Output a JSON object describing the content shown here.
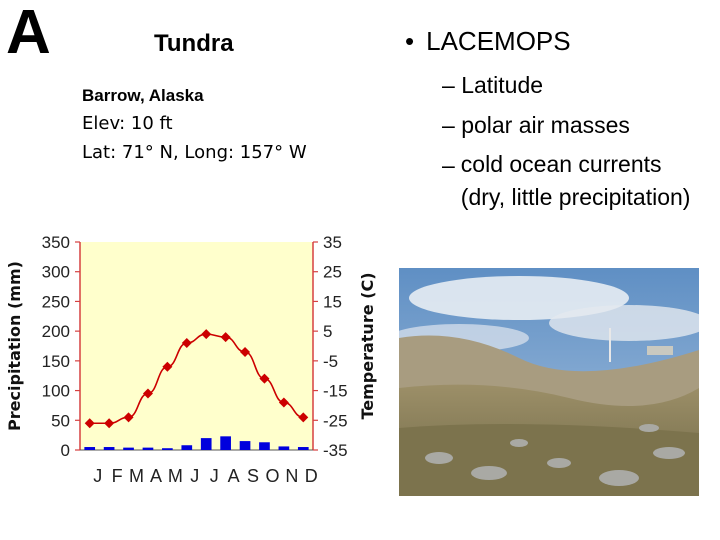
{
  "slide": {
    "letter": "A",
    "title": "Tundra",
    "station": "Barrow, Alaska",
    "elevation": "Elev: 10 ft",
    "location": "Lat: 71° N, Long: 157° W",
    "bullet": "LACEMOPS",
    "bullet_glyph": "•",
    "sub_items": [
      {
        "dash": "–",
        "text": "Latitude"
      },
      {
        "dash": "–",
        "text": "polar air masses"
      },
      {
        "dash": "–",
        "text": "cold ocean currents (dry, little precipitation)"
      }
    ]
  },
  "chart_data": {
    "type": "bar+line",
    "categories": [
      "J",
      "F",
      "M",
      "A",
      "M",
      "J",
      "J",
      "A",
      "S",
      "O",
      "N",
      "D"
    ],
    "ylabel_left": "Precipitation (mm)",
    "ylabel_right": "Temperature (C)",
    "yticks_left": [
      "350",
      "300",
      "250",
      "200",
      "150",
      "100",
      "50",
      "0"
    ],
    "yticks_right": [
      "35",
      "25",
      "15",
      "5",
      "-5",
      "-15",
      "-25",
      "-35"
    ],
    "ylim_left": [
      0,
      350
    ],
    "ylim_right": [
      -35,
      35
    ],
    "precipitation": [
      5,
      5,
      4,
      4,
      3,
      8,
      20,
      23,
      15,
      13,
      6,
      5
    ],
    "temperature": [
      -26,
      -26,
      -24,
      -16,
      -7,
      1,
      4,
      3,
      -2,
      -11,
      -19,
      -24
    ],
    "colors": {
      "background": "#ffffcc",
      "bars": "#0000dd",
      "line": "#cc0000",
      "axis": "#d64040"
    }
  },
  "photo": {
    "colors": {
      "sky": "#7aa3cf",
      "cloud": "#eef2f6",
      "hill": "#a89c80",
      "ground": "#8b7e57",
      "rock": "#a9a9a4"
    }
  }
}
